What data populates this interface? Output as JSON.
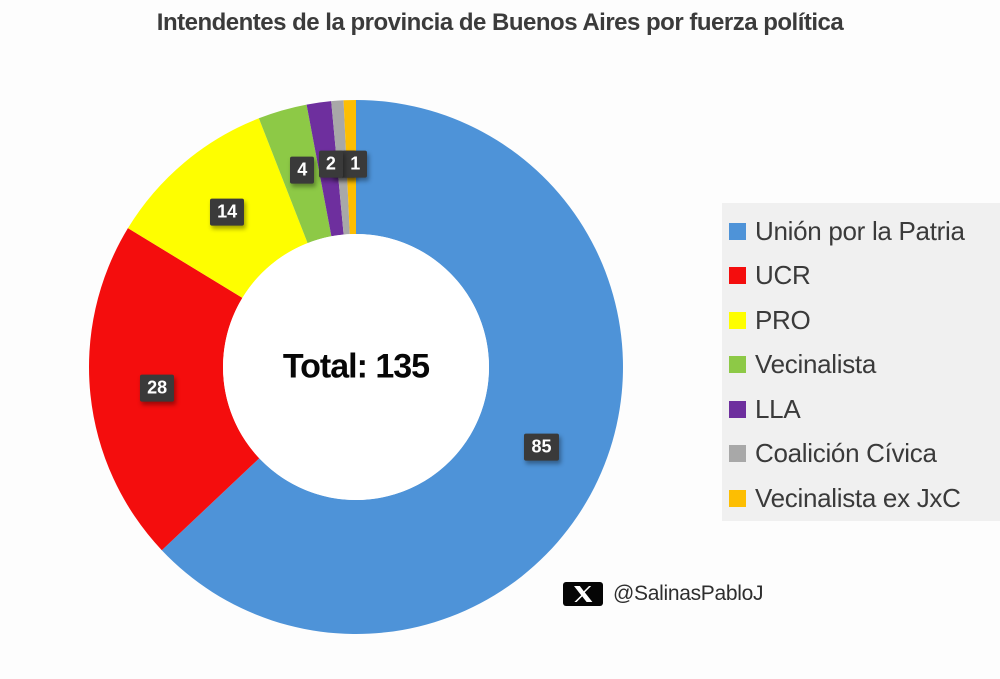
{
  "title": "Intendentes de la provincia de Buenos Aires por fuerza política",
  "chart_data": {
    "type": "donut",
    "title": "Intendentes de la provincia de Buenos Aires por fuerza política",
    "center_label": "Total: 135",
    "total": 135,
    "series": [
      {
        "label": "Unión por la Patria",
        "value": 85,
        "color": "#4E93D8"
      },
      {
        "label": "UCR",
        "value": 28,
        "color": "#F40D0D"
      },
      {
        "label": "PRO",
        "value": 14,
        "color": "#FEFE00"
      },
      {
        "label": "Vecinalista",
        "value": 4,
        "color": "#8DC946"
      },
      {
        "label": "LLA",
        "value": 2,
        "color": "#6E2F9E"
      },
      {
        "label": "Coalición Cívica",
        "value": 1,
        "color": "#A8A8A8"
      },
      {
        "label": "Vecinalista ex JxC",
        "value": 1,
        "color": "#FDBE02"
      }
    ],
    "data_labels": [
      85,
      28,
      14,
      4,
      2,
      1,
      1
    ],
    "legend_position": "right",
    "start_angle_deg": 0,
    "direction": "clockwise"
  },
  "footer": {
    "handle": "@SalinasPabloJ",
    "icon": "x-twitter-logo"
  },
  "colors": {
    "page_bg": "#FDFDFD",
    "legend_panel_bg": "#F0F0F0",
    "label_chip_bg": "#3A3A3A",
    "label_chip_text": "#FFFFFF",
    "title_text": "#3B3B3B",
    "donut_hole": "#FFFFFF"
  }
}
